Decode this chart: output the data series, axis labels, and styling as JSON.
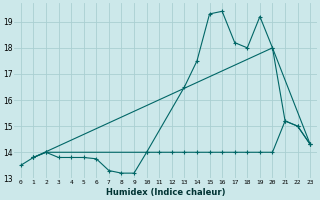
{
  "title": "",
  "xlabel": "Humidex (Indice chaleur)",
  "bg_color": "#cce8ea",
  "grid_color": "#aacfd2",
  "line_color": "#006666",
  "xlim": [
    -0.5,
    23.5
  ],
  "ylim": [
    13.0,
    19.7
  ],
  "yticks": [
    13,
    14,
    15,
    16,
    17,
    18,
    19
  ],
  "xticks": [
    0,
    1,
    2,
    3,
    4,
    5,
    6,
    7,
    8,
    9,
    10,
    11,
    12,
    13,
    14,
    15,
    16,
    17,
    18,
    19,
    20,
    21,
    22,
    23
  ],
  "series1_x": [
    0,
    1,
    2,
    3,
    4,
    5,
    6,
    7,
    8,
    9,
    10,
    11,
    12,
    13,
    14,
    15,
    16,
    17,
    18,
    19,
    20,
    21,
    22,
    23
  ],
  "series1_y": [
    13.5,
    13.8,
    14.0,
    13.8,
    13.8,
    13.8,
    13.75,
    13.3,
    13.2,
    13.2,
    14.0,
    14.0,
    14.0,
    14.0,
    14.0,
    14.0,
    14.0,
    14.0,
    14.0,
    14.0,
    14.0,
    15.2,
    15.0,
    14.3
  ],
  "series2_x": [
    1,
    2,
    10,
    13,
    14,
    15,
    16,
    17,
    18,
    19,
    20,
    21,
    22,
    23
  ],
  "series2_y": [
    13.8,
    14.0,
    14.0,
    16.5,
    17.5,
    19.3,
    19.4,
    18.2,
    18.0,
    19.2,
    18.0,
    15.2,
    15.0,
    14.3
  ],
  "series3_x": [
    1,
    20,
    23
  ],
  "series3_y": [
    13.8,
    18.0,
    14.3
  ]
}
